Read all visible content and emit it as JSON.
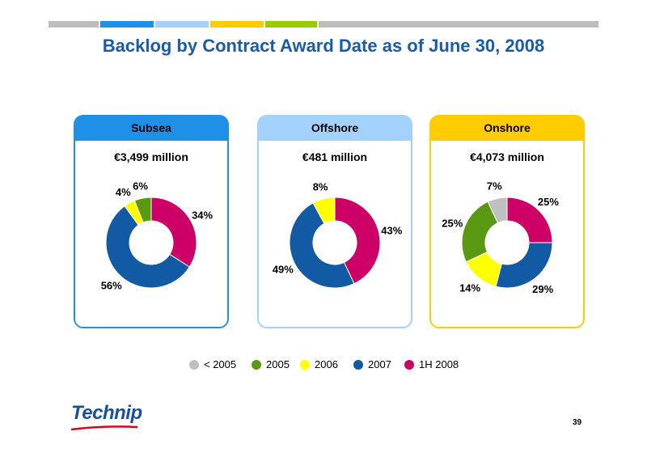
{
  "slide": {
    "title": "Backlog by Contract Award Date as of June 30, 2008",
    "page_number": "39",
    "logo_text": "Technip"
  },
  "colors": {
    "lt2005": "#c0c0c0",
    "y2005": "#5a9a12",
    "y2006": "#ffff00",
    "y2007": "#135aa4",
    "h1_2008": "#cc0066",
    "subsea": "#1e90e8",
    "offshore": "#a3d2ff",
    "onshore": "#ffcc00",
    "topbar_gray": "#bdbdbd"
  },
  "chart_data": [
    {
      "type": "pie",
      "title": "Subsea",
      "subtitle": "€3,499 million",
      "categories": [
        "< 2005",
        "2005",
        "2006",
        "2007",
        "1H 2008"
      ],
      "values": [
        0,
        6,
        4,
        56,
        34
      ],
      "labels": [
        "",
        "6%",
        "4%",
        "56%",
        "34%"
      ]
    },
    {
      "type": "pie",
      "title": "Offshore",
      "subtitle": "€481 million",
      "categories": [
        "< 2005",
        "2005",
        "2006",
        "2007",
        "1H 2008"
      ],
      "values": [
        0,
        0,
        8,
        49,
        43
      ],
      "labels": [
        "",
        "",
        "8%",
        "49%",
        "43%"
      ]
    },
    {
      "type": "pie",
      "title": "Onshore",
      "subtitle": "€4,073 million",
      "categories": [
        "< 2005",
        "2005",
        "2006",
        "2007",
        "1H 2008"
      ],
      "values": [
        7,
        25,
        14,
        29,
        25
      ],
      "labels": [
        "7%",
        "25%",
        "14%",
        "29%",
        "25%"
      ]
    }
  ],
  "legend": [
    {
      "label": "< 2005",
      "color": "#c0c0c0"
    },
    {
      "label": "2005",
      "color": "#5a9a12"
    },
    {
      "label": "2006",
      "color": "#ffff00"
    },
    {
      "label": "2007",
      "color": "#135aa4"
    },
    {
      "label": "1H 2008",
      "color": "#cc0066"
    }
  ]
}
